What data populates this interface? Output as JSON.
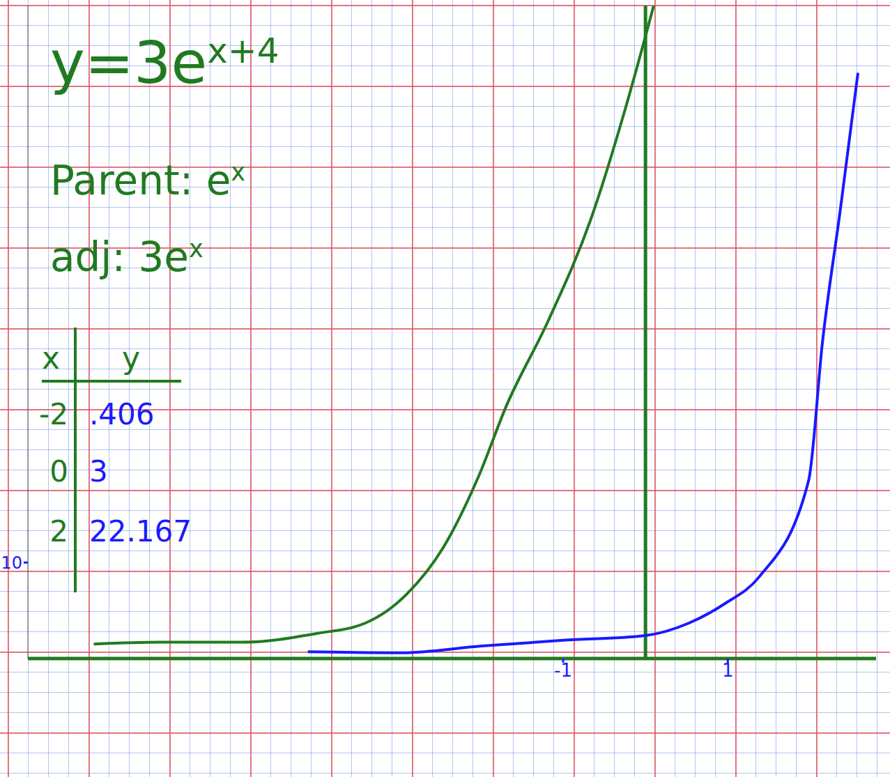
{
  "chart_data": {
    "type": "line",
    "annotations": [
      {
        "text": "y=3e",
        "sup": "x+4"
      },
      {
        "text": "Parent: e",
        "sup": "x"
      },
      {
        "text": "adj: 3e",
        "sup": "x"
      }
    ],
    "table": {
      "header": [
        "x",
        "y"
      ],
      "rows": [
        [
          -2,
          {
            "value": 0.406,
            "label": ".406"
          }
        ],
        [
          0,
          3
        ],
        [
          2,
          22.167
        ]
      ]
    },
    "xlim": [
      -7.5,
      2.8
    ],
    "xticks": [
      -1,
      1
    ],
    "ylim": [
      0,
      68
    ],
    "yticks": [
      10
    ],
    "grid": true,
    "marker": "none",
    "line_style": "solid",
    "series": [
      {
        "color": "#217a21",
        "x": [
          -6.7,
          -5.9,
          -4.9,
          -4,
          -3.4,
          -2.9,
          -2.46,
          -2.03,
          -1.69,
          -1.18,
          -0.67,
          -0.24,
          0,
          0.1
        ],
        "values": [
          1.5,
          1.7,
          1.7,
          2.6,
          3.7,
          6.7,
          11.5,
          18.9,
          26.3,
          35.2,
          45.6,
          57.4,
          64.8,
          68
        ]
      },
      {
        "color": "#1a1aff",
        "x": [
          -4.1,
          -2.97,
          -1.99,
          -1,
          0,
          0.53,
          0.96,
          1.38,
          1.98,
          2.15,
          2.37,
          2.58
        ],
        "values": [
          0.7,
          0.6,
          1.3,
          1.9,
          2.4,
          3.7,
          5.7,
          8.5,
          18.5,
          33,
          47,
          61
        ]
      }
    ]
  }
}
